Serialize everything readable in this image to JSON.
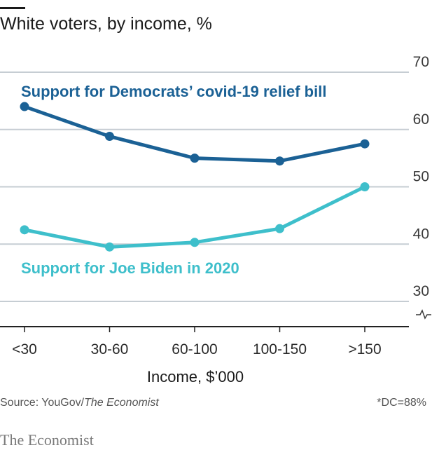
{
  "title": "White voters, by income, %",
  "source_prefix": "Source: YouGov/",
  "source_italic": "The Economist",
  "note": "*DC=88%",
  "brand": "The Economist",
  "colors": {
    "democrats": "#1b6195",
    "biden": "#3ebfcb",
    "grid": "#c6cdd3",
    "axis": "#222222"
  },
  "chart_data": {
    "type": "line",
    "categories": [
      "<30",
      "30-60",
      "60-100",
      "100-150",
      ">150"
    ],
    "series": [
      {
        "name": "Support for Democrats’ covid-19 relief bill",
        "values": [
          64,
          58.8,
          55,
          54.5,
          57.5
        ]
      },
      {
        "name": "Support for Joe Biden in 2020",
        "values": [
          42.5,
          39.5,
          40.3,
          42.7,
          50
        ]
      }
    ],
    "xlabel": "Income, $’000",
    "ylabel": "",
    "ylim": [
      30,
      70
    ],
    "yticks": [
      70,
      60,
      50,
      40,
      30
    ],
    "y_axis_broken": true,
    "grid": true
  }
}
